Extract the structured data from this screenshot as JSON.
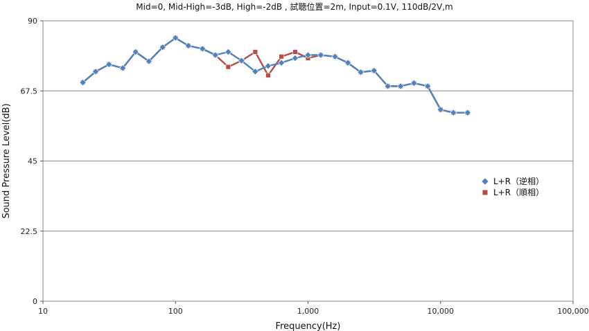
{
  "chart_data": {
    "type": "line",
    "title": "Mid=0, Mid-High=-3dB, High=-2dB , 試聴位置=2m,  Input=0.1V, 110dB/2V,m",
    "xlabel": "Frequency(Hz)",
    "ylabel": "Sound Pressure Level(dB)",
    "x_scale": "log",
    "xlim": [
      10,
      100000
    ],
    "ylim": [
      0,
      90
    ],
    "x_ticks": [
      10,
      100,
      1000,
      10000,
      100000
    ],
    "x_tick_labels": [
      "10",
      "100",
      "1,000",
      "10,000",
      "100,000"
    ],
    "y_ticks": [
      0,
      22.5,
      45,
      67.5,
      90
    ],
    "y_tick_labels": [
      "0",
      "22.5",
      "45",
      "67.5",
      "90"
    ],
    "grid": "horizontal",
    "legend_position": "right",
    "series": [
      {
        "name": "L+R（順相）",
        "color": "#b94a48",
        "marker": "square",
        "points": [
          [
            20,
            70.2
          ],
          [
            25,
            73.7
          ],
          [
            31.5,
            76
          ],
          [
            40,
            74.8
          ],
          [
            50,
            80
          ],
          [
            63,
            77
          ],
          [
            80,
            81.5
          ],
          [
            100,
            84.5
          ],
          [
            125,
            82
          ],
          [
            160,
            81
          ],
          [
            200,
            79
          ],
          [
            250,
            75.2
          ],
          [
            315,
            77.2
          ],
          [
            400,
            80
          ],
          [
            500,
            72.5
          ],
          [
            630,
            78.5
          ],
          [
            800,
            80
          ],
          [
            1000,
            78
          ],
          [
            1250,
            79
          ],
          [
            1600,
            78.5
          ],
          [
            2000,
            76.5
          ],
          [
            2500,
            73.5
          ],
          [
            3150,
            74
          ],
          [
            4000,
            69
          ],
          [
            5000,
            69
          ],
          [
            6300,
            70
          ],
          [
            8000,
            69
          ],
          [
            10000,
            61.5
          ],
          [
            12500,
            60.5
          ],
          [
            16000,
            60.5
          ]
        ]
      },
      {
        "name": "L+R（逆相）",
        "color": "#4f81bd",
        "marker": "diamond",
        "points": [
          [
            20,
            70.2
          ],
          [
            25,
            73.7
          ],
          [
            31.5,
            76
          ],
          [
            40,
            74.8
          ],
          [
            50,
            80
          ],
          [
            63,
            77
          ],
          [
            80,
            81.5
          ],
          [
            100,
            84.5
          ],
          [
            125,
            82
          ],
          [
            160,
            81
          ],
          [
            200,
            79
          ],
          [
            250,
            80
          ],
          [
            315,
            77.2
          ],
          [
            400,
            73.7
          ],
          [
            500,
            75.5
          ],
          [
            630,
            76.5
          ],
          [
            800,
            78
          ],
          [
            1000,
            79
          ],
          [
            1250,
            79
          ],
          [
            1600,
            78.5
          ],
          [
            2000,
            76.5
          ],
          [
            2500,
            73.5
          ],
          [
            3150,
            74
          ],
          [
            4000,
            69
          ],
          [
            5000,
            69
          ],
          [
            6300,
            70
          ],
          [
            8000,
            69
          ],
          [
            10000,
            61.5
          ],
          [
            12500,
            60.5
          ],
          [
            16000,
            60.5
          ]
        ]
      }
    ],
    "legend": [
      {
        "label": "L+R（逆相）",
        "color": "#4f81bd",
        "marker": "diamond"
      },
      {
        "label": "L+R（順相）",
        "color": "#b94a48",
        "marker": "square"
      }
    ]
  }
}
